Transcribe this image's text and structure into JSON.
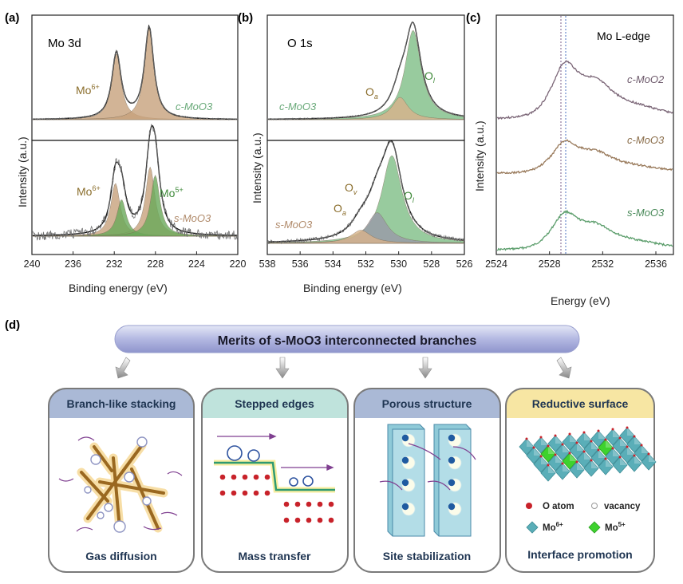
{
  "chart_data": [
    {
      "panel": "(a)",
      "type": "line",
      "title": "Mo 3d",
      "xlabel": "Binding energy (eV)",
      "ylabel": "Intensity (a.u.)",
      "xlim": [
        240,
        220
      ],
      "xticks": [
        "240",
        "236",
        "232",
        "228",
        "224",
        "220"
      ],
      "x": [
        240,
        220
      ],
      "top": {
        "sample": "c-MoO3",
        "labels": [
          "Mo6+"
        ],
        "peaks": [
          {
            "name": "Mo6+",
            "center": 231.8,
            "height": 0.72
          },
          {
            "name": "Mo6+",
            "center": 228.6,
            "height": 1.0
          }
        ]
      },
      "bottom": {
        "sample": "s-MoO3",
        "labels": [
          "Mo6+",
          "Mo5+"
        ],
        "peaks": [
          {
            "name": "Mo6+",
            "center": 231.9,
            "height": 0.65
          },
          {
            "name": "Mo6+",
            "center": 228.5,
            "height": 0.85
          },
          {
            "name": "Mo5+",
            "center": 231.3,
            "height": 0.45
          },
          {
            "name": "Mo5+",
            "center": 228.0,
            "height": 0.75
          }
        ]
      }
    },
    {
      "panel": "(b)",
      "type": "line",
      "title": "O 1s",
      "xlabel": "Binding energy (eV)",
      "ylabel": "Intensity (a.u.)",
      "xlim": [
        538,
        526
      ],
      "xticks": [
        "538",
        "536",
        "534",
        "532",
        "530",
        "528",
        "526"
      ],
      "x": [
        538,
        526
      ],
      "top": {
        "sample": "c-MoO3",
        "labels": [
          "Oa",
          "Ol"
        ],
        "peaks": [
          {
            "name": "Ol",
            "center": 529.1,
            "height": 1.0
          },
          {
            "name": "Oa",
            "center": 529.9,
            "height": 0.25
          }
        ]
      },
      "bottom": {
        "sample": "s-MoO3",
        "labels": [
          "Oa",
          "Ov",
          "Ol"
        ],
        "peaks": [
          {
            "name": "Ol",
            "center": 530.4,
            "height": 1.0
          },
          {
            "name": "Ov",
            "center": 531.3,
            "height": 0.35
          },
          {
            "name": "Oa",
            "center": 532.3,
            "height": 0.15
          }
        ]
      }
    },
    {
      "panel": "(c)",
      "type": "line",
      "title": "Mo L-edge",
      "xlabel": "Energy (eV)",
      "ylabel": "Intensity (a.u.)",
      "xlim": [
        2524,
        2537
      ],
      "xticks": [
        "2524",
        "2528",
        "2532",
        "2536"
      ],
      "x": [
        2524,
        2537
      ],
      "series": [
        {
          "name": "c-MoO2",
          "peak": 2529.0
        },
        {
          "name": "c-MoO3",
          "peak": 2529.0
        },
        {
          "name": "s-MoO3",
          "peak": 2529.0
        }
      ],
      "reference_lines": [
        2528.8,
        2529.1
      ]
    }
  ],
  "panel_labels": {
    "a": "(a)",
    "b": "(b)",
    "c": "(c)",
    "d": "(d)"
  },
  "text": {
    "a_title": "Mo 3d",
    "a_mo6_top": "Mo",
    "a_sup6": "6+",
    "a_cmoo3": "c-MoO3",
    "a_mo6_bot": "Mo",
    "a_mo5": "Mo",
    "a_sup5": "5+",
    "a_smoo3": "s-MoO3",
    "b_title": "O 1s",
    "b_oa_top": "O",
    "b_ol_top": "O",
    "b_cmoo3": "c-MoO3",
    "b_ov": "O",
    "b_oa_bot": "O",
    "b_ol_bot": "O",
    "b_smoo3": "s-MoO3",
    "c_title": "Mo L-edge",
    "c_moo2": "c-MoO2",
    "c_moo3": "c-MoO3",
    "c_smoo3": "s-MoO3",
    "ylabel": "Intensity (a.u.)",
    "xlabel_be": "Binding energy (eV)",
    "xlabel_e": "Energy (eV)"
  },
  "banner": {
    "title": "Merits of s-MoO3 interconnected branches"
  },
  "cards": [
    {
      "title": "Branch-like stacking",
      "footer": "Gas diffusion",
      "color": "#aab9d6"
    },
    {
      "title": "Stepped edges",
      "footer": "Mass transfer",
      "color": "#bfe3dc"
    },
    {
      "title": "Porous structure",
      "footer": "Site stabilization",
      "color": "#aab9d6"
    },
    {
      "title": "Reductive surface",
      "footer": "Interface promotion",
      "color": "#f7e6a3"
    }
  ],
  "legend": {
    "o_atom": "O atom",
    "vacancy": "vacancy",
    "mo6": "Mo",
    "mo6_sup": "6+",
    "mo5": "Mo",
    "mo5_sup": "5+"
  },
  "colors": {
    "mo6": "#c8a27c",
    "mo5": "#6aaa5a",
    "ol": "#7fbf86",
    "oa": "#d9b38c",
    "ov": "#9a9aa8",
    "moo2": "#7b6677",
    "moo3": "#98795a",
    "smoo3": "#5b9d6b",
    "red_atom": "#c8222a"
  }
}
